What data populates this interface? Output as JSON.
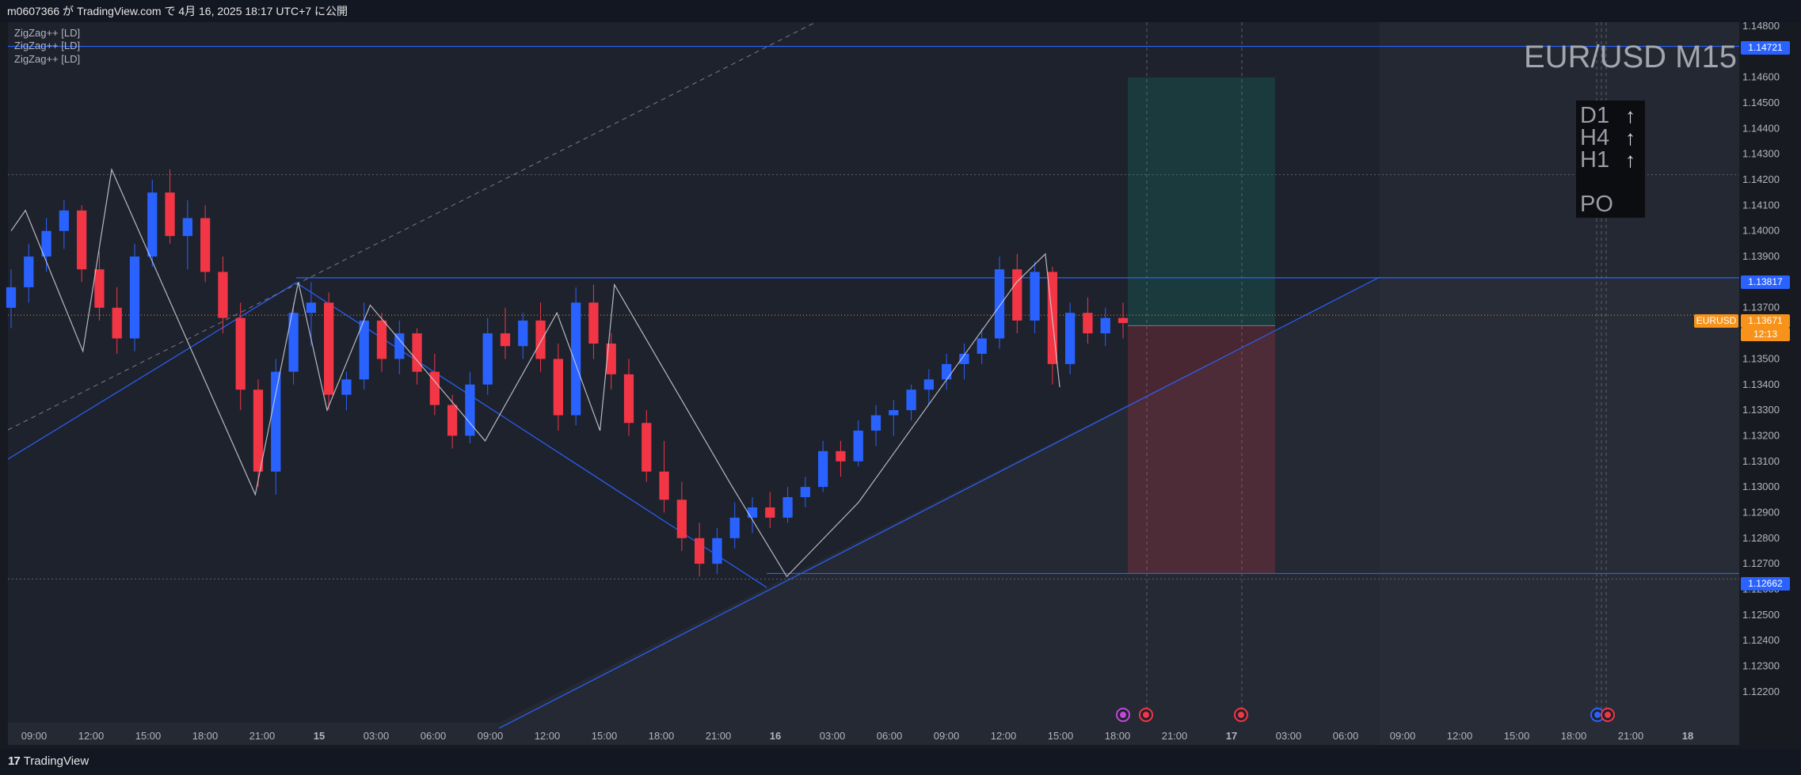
{
  "header": {
    "caption": "m0607366 が TradingView.com で 4月 16, 2025 18:17 UTC+7 に公開"
  },
  "indicators": [
    "ZigZag++ [LD]",
    "ZigZag++ [LD]",
    "ZigZag++ [LD]"
  ],
  "symbol_title": "EUR/USD M15",
  "mtf_panel": {
    "rows": [
      {
        "tf": "D1",
        "arrow": "↑"
      },
      {
        "tf": "H4",
        "arrow": "↑"
      },
      {
        "tf": "H1",
        "arrow": "↑"
      }
    ],
    "footer": "PO"
  },
  "price_tags": {
    "top_line": "1.14721",
    "mid_line": "1.13817",
    "bottom_line": "1.12662",
    "symbol": "EURUSD",
    "current": "1.13671",
    "countdown": "12:13"
  },
  "footer": {
    "brand": "TradingView",
    "brand_mark": "17"
  },
  "colors": {
    "background": "#1e222d",
    "up_candle": "#2962ff",
    "down_candle": "#f23645",
    "blue_line": "#2962ff",
    "current_price": "#f7931a",
    "zigzag": "#d1d4dc"
  },
  "chart_data": {
    "type": "candlestick",
    "title": "EUR/USD M15",
    "y_axis": {
      "min": 1.1215,
      "max": 1.148,
      "ticks": [
        "1.14800",
        "1.14600",
        "1.14500",
        "1.14400",
        "1.14300",
        "1.14200",
        "1.14100",
        "1.14000",
        "1.13900",
        "1.13800",
        "1.13700",
        "1.13600",
        "1.13500",
        "1.13400",
        "1.13300",
        "1.13200",
        "1.13100",
        "1.13000",
        "1.12900",
        "1.12800",
        "1.12700",
        "1.12600",
        "1.12500",
        "1.12400",
        "1.12300",
        "1.12200"
      ]
    },
    "x_axis": {
      "ticks": [
        "09:00",
        "12:00",
        "15:00",
        "18:00",
        "21:00",
        "15",
        "03:00",
        "06:00",
        "09:00",
        "12:00",
        "15:00",
        "18:00",
        "21:00",
        "16",
        "03:00",
        "06:00",
        "09:00",
        "12:00",
        "15:00",
        "18:00",
        "21:00",
        "17",
        "03:00",
        "06:00",
        "09:00",
        "12:00",
        "15:00",
        "18:00",
        "21:00",
        "18"
      ],
      "bold_ticks": [
        "15",
        "16",
        "17",
        "18"
      ]
    },
    "zigzag_pivots": [
      [
        0,
        1.14
      ],
      [
        1,
        1.1408
      ],
      [
        5,
        1.1353
      ],
      [
        7,
        1.1424
      ],
      [
        17,
        1.1297
      ],
      [
        20,
        1.138
      ],
      [
        22,
        1.133
      ],
      [
        25,
        1.1371
      ],
      [
        33,
        1.1318
      ],
      [
        38,
        1.1368
      ],
      [
        41,
        1.1322
      ],
      [
        42,
        1.1379
      ],
      [
        50,
        1.1302
      ],
      [
        54,
        1.1265
      ],
      [
        59,
        1.1294
      ],
      [
        70,
        1.138
      ],
      [
        72,
        1.1391
      ],
      [
        73,
        1.1339
      ]
    ],
    "horizontal_levels": [
      1.14721,
      1.13817,
      1.12662
    ],
    "current_price": 1.13671,
    "position": {
      "type": "long",
      "entry": 1.1363,
      "take_profit": 1.146,
      "stop_loss": 1.12662
    },
    "trendlines": [
      {
        "from": [
          1.1344,
          "start"
        ],
        "to": [
          1.13817,
          "15 04:30"
        ],
        "style": "solid"
      },
      {
        "from": [
          1.1385,
          "15 03:30"
        ],
        "to": [
          1.12662,
          "16 00:00"
        ],
        "style": "solid"
      },
      {
        "from": [
          1.1263,
          "16 00:00"
        ],
        "to": [
          1.13817,
          "17 09:30"
        ],
        "style": "solid"
      },
      {
        "from": [
          1.1263,
          "start"
        ],
        "to": [
          1.148,
          "15 14:00"
        ],
        "style": "dashed"
      }
    ],
    "candles": [
      {
        "o": 1.137,
        "h": 1.1385,
        "l": 1.1362,
        "c": 1.1378
      },
      {
        "o": 1.1378,
        "h": 1.1395,
        "l": 1.1372,
        "c": 1.139
      },
      {
        "o": 1.139,
        "h": 1.1405,
        "l": 1.1384,
        "c": 1.14
      },
      {
        "o": 1.14,
        "h": 1.1412,
        "l": 1.1393,
        "c": 1.1408
      },
      {
        "o": 1.1408,
        "h": 1.141,
        "l": 1.138,
        "c": 1.1385
      },
      {
        "o": 1.1385,
        "h": 1.1392,
        "l": 1.1365,
        "c": 1.137
      },
      {
        "o": 1.137,
        "h": 1.1378,
        "l": 1.1352,
        "c": 1.1358
      },
      {
        "o": 1.1358,
        "h": 1.1395,
        "l": 1.1353,
        "c": 1.139
      },
      {
        "o": 1.139,
        "h": 1.142,
        "l": 1.1386,
        "c": 1.1415
      },
      {
        "o": 1.1415,
        "h": 1.1424,
        "l": 1.1395,
        "c": 1.1398
      },
      {
        "o": 1.1398,
        "h": 1.1412,
        "l": 1.1385,
        "c": 1.1405
      },
      {
        "o": 1.1405,
        "h": 1.141,
        "l": 1.138,
        "c": 1.1384
      },
      {
        "o": 1.1384,
        "h": 1.139,
        "l": 1.136,
        "c": 1.1366
      },
      {
        "o": 1.1366,
        "h": 1.1372,
        "l": 1.133,
        "c": 1.1338
      },
      {
        "o": 1.1338,
        "h": 1.1342,
        "l": 1.13,
        "c": 1.1306
      },
      {
        "o": 1.1306,
        "h": 1.135,
        "l": 1.1297,
        "c": 1.1345
      },
      {
        "o": 1.1345,
        "h": 1.1372,
        "l": 1.134,
        "c": 1.1368
      },
      {
        "o": 1.1368,
        "h": 1.138,
        "l": 1.1355,
        "c": 1.1372
      },
      {
        "o": 1.1372,
        "h": 1.1376,
        "l": 1.133,
        "c": 1.1336
      },
      {
        "o": 1.1336,
        "h": 1.1345,
        "l": 1.133,
        "c": 1.1342
      },
      {
        "o": 1.1342,
        "h": 1.1372,
        "l": 1.1338,
        "c": 1.1365
      },
      {
        "o": 1.1365,
        "h": 1.1368,
        "l": 1.1345,
        "c": 1.135
      },
      {
        "o": 1.135,
        "h": 1.1365,
        "l": 1.1344,
        "c": 1.136
      },
      {
        "o": 1.136,
        "h": 1.1362,
        "l": 1.134,
        "c": 1.1345
      },
      {
        "o": 1.1345,
        "h": 1.1352,
        "l": 1.1328,
        "c": 1.1332
      },
      {
        "o": 1.1332,
        "h": 1.1336,
        "l": 1.1315,
        "c": 1.132
      },
      {
        "o": 1.132,
        "h": 1.1345,
        "l": 1.1317,
        "c": 1.134
      },
      {
        "o": 1.134,
        "h": 1.1366,
        "l": 1.1336,
        "c": 1.136
      },
      {
        "o": 1.136,
        "h": 1.137,
        "l": 1.135,
        "c": 1.1355
      },
      {
        "o": 1.1355,
        "h": 1.1368,
        "l": 1.135,
        "c": 1.1365
      },
      {
        "o": 1.1365,
        "h": 1.1372,
        "l": 1.1345,
        "c": 1.135
      },
      {
        "o": 1.135,
        "h": 1.1356,
        "l": 1.1322,
        "c": 1.1328
      },
      {
        "o": 1.1328,
        "h": 1.1378,
        "l": 1.1324,
        "c": 1.1372
      },
      {
        "o": 1.1372,
        "h": 1.1379,
        "l": 1.135,
        "c": 1.1356
      },
      {
        "o": 1.1356,
        "h": 1.136,
        "l": 1.1338,
        "c": 1.1344
      },
      {
        "o": 1.1344,
        "h": 1.135,
        "l": 1.132,
        "c": 1.1325
      },
      {
        "o": 1.1325,
        "h": 1.133,
        "l": 1.1302,
        "c": 1.1306
      },
      {
        "o": 1.1306,
        "h": 1.1318,
        "l": 1.129,
        "c": 1.1295
      },
      {
        "o": 1.1295,
        "h": 1.1302,
        "l": 1.1275,
        "c": 1.128
      },
      {
        "o": 1.128,
        "h": 1.1286,
        "l": 1.1265,
        "c": 1.127
      },
      {
        "o": 1.127,
        "h": 1.1284,
        "l": 1.1266,
        "c": 1.128
      },
      {
        "o": 1.128,
        "h": 1.1294,
        "l": 1.1276,
        "c": 1.1288
      },
      {
        "o": 1.1288,
        "h": 1.1296,
        "l": 1.1282,
        "c": 1.1292
      },
      {
        "o": 1.1292,
        "h": 1.1298,
        "l": 1.1284,
        "c": 1.1288
      },
      {
        "o": 1.1288,
        "h": 1.13,
        "l": 1.1286,
        "c": 1.1296
      },
      {
        "o": 1.1296,
        "h": 1.1304,
        "l": 1.1292,
        "c": 1.13
      },
      {
        "o": 1.13,
        "h": 1.1318,
        "l": 1.1298,
        "c": 1.1314
      },
      {
        "o": 1.1314,
        "h": 1.1318,
        "l": 1.1304,
        "c": 1.131
      },
      {
        "o": 1.131,
        "h": 1.1326,
        "l": 1.1308,
        "c": 1.1322
      },
      {
        "o": 1.1322,
        "h": 1.1332,
        "l": 1.1316,
        "c": 1.1328
      },
      {
        "o": 1.1328,
        "h": 1.1334,
        "l": 1.132,
        "c": 1.133
      },
      {
        "o": 1.133,
        "h": 1.134,
        "l": 1.1326,
        "c": 1.1338
      },
      {
        "o": 1.1338,
        "h": 1.1346,
        "l": 1.1332,
        "c": 1.1342
      },
      {
        "o": 1.1342,
        "h": 1.1352,
        "l": 1.1338,
        "c": 1.1348
      },
      {
        "o": 1.1348,
        "h": 1.1356,
        "l": 1.1342,
        "c": 1.1352
      },
      {
        "o": 1.1352,
        "h": 1.1362,
        "l": 1.1348,
        "c": 1.1358
      },
      {
        "o": 1.1358,
        "h": 1.139,
        "l": 1.1354,
        "c": 1.1385
      },
      {
        "o": 1.1385,
        "h": 1.1391,
        "l": 1.136,
        "c": 1.1365
      },
      {
        "o": 1.1365,
        "h": 1.1388,
        "l": 1.136,
        "c": 1.1384
      },
      {
        "o": 1.1384,
        "h": 1.1386,
        "l": 1.134,
        "c": 1.1348
      },
      {
        "o": 1.1348,
        "h": 1.1372,
        "l": 1.1344,
        "c": 1.1368
      },
      {
        "o": 1.1368,
        "h": 1.1374,
        "l": 1.1356,
        "c": 1.136
      },
      {
        "o": 1.136,
        "h": 1.137,
        "l": 1.1355,
        "c": 1.1366
      },
      {
        "o": 1.1366,
        "h": 1.1372,
        "l": 1.1358,
        "c": 1.1364
      }
    ]
  }
}
